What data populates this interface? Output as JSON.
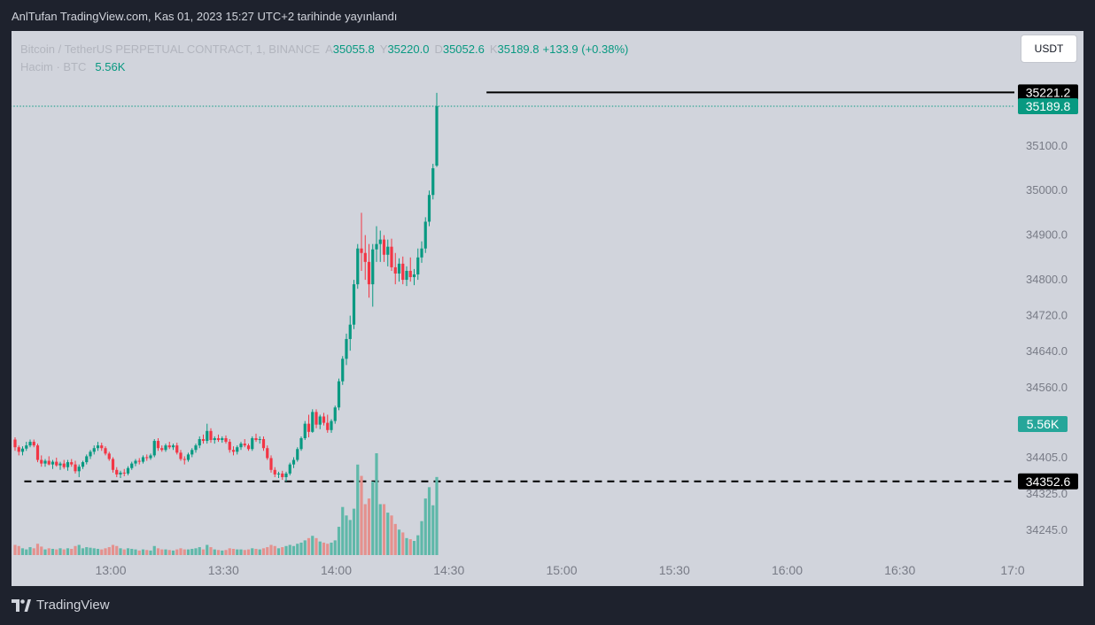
{
  "caption": "AnlTufan TradingView.com, Kas 01, 2023 15:27 UTC+2 tarihinde yayınlandı",
  "legend": {
    "symbol": "Bitcoin / TetherUS PERPETUAL CONTRACT, 1, BINANCE",
    "open_label": "A",
    "open": "35055.8",
    "high_label": "Y",
    "high": "35220.0",
    "low_label": "D",
    "low": "35052.6",
    "close_label": "K",
    "close": "35189.8",
    "change": "+133.9 (+0.38%)",
    "volume_label": "Hacim · BTC",
    "volume": "5.56K"
  },
  "currency_button": "USDT",
  "branding": "TradingView",
  "colors": {
    "up": "#089981",
    "down": "#f23645",
    "vol_up": "#5fb8a9",
    "vol_down": "#e4918e"
  },
  "chart_data": {
    "type": "candlestick",
    "y_ticks": [
      "35100.0",
      "35000.0",
      "34900.0",
      "34800.0",
      "34720.0",
      "34640.0",
      "34560.0",
      "34405.0",
      "34325.0",
      "34245.0"
    ],
    "x_ticks": [
      "13:00",
      "13:30",
      "14:00",
      "14:30",
      "15:00",
      "15:30",
      "16:00",
      "16:30",
      "17:0"
    ],
    "y_scale": "logarithmic",
    "price_labels": {
      "high_line": "35221.2",
      "last_price": "35189.8",
      "volume_tag": "5.56K",
      "low_line": "34352.6"
    },
    "lines": [
      {
        "price": 35221.2,
        "style": "solid",
        "from_time": "14:40"
      },
      {
        "price": 35189.8,
        "style": "dotted",
        "from_time": "12:30"
      },
      {
        "price": 34352.6,
        "style": "dashed",
        "from_time": "12:37"
      }
    ],
    "candles": [
      [
        34445,
        34450,
        34420,
        34428,
        0.18
      ],
      [
        34428,
        34432,
        34410,
        34418,
        0.16
      ],
      [
        34418,
        34430,
        34410,
        34425,
        0.12
      ],
      [
        34425,
        34440,
        34420,
        34432,
        0.1
      ],
      [
        34432,
        34445,
        34428,
        34440,
        0.14
      ],
      [
        34440,
        34445,
        34428,
        34432,
        0.12
      ],
      [
        34432,
        34436,
        34395,
        34400,
        0.2
      ],
      [
        34400,
        34410,
        34385,
        34392,
        0.15
      ],
      [
        34392,
        34402,
        34385,
        34398,
        0.1
      ],
      [
        34398,
        34408,
        34388,
        34390,
        0.12
      ],
      [
        34390,
        34400,
        34380,
        34396,
        0.11
      ],
      [
        34396,
        34405,
        34385,
        34388,
        0.1
      ],
      [
        34388,
        34396,
        34378,
        34392,
        0.12
      ],
      [
        34392,
        34400,
        34380,
        34384,
        0.1
      ],
      [
        34384,
        34400,
        34376,
        34395,
        0.12
      ],
      [
        34395,
        34402,
        34385,
        34390,
        0.11
      ],
      [
        34390,
        34398,
        34370,
        34375,
        0.16
      ],
      [
        34375,
        34390,
        34362,
        34385,
        0.18
      ],
      [
        34385,
        34398,
        34380,
        34395,
        0.12
      ],
      [
        34395,
        34412,
        34390,
        34408,
        0.14
      ],
      [
        34408,
        34422,
        34402,
        34418,
        0.13
      ],
      [
        34418,
        34432,
        34412,
        34426,
        0.12
      ],
      [
        34426,
        34440,
        34420,
        34432,
        0.11
      ],
      [
        34432,
        34438,
        34420,
        34426,
        0.1
      ],
      [
        34426,
        34430,
        34410,
        34414,
        0.12
      ],
      [
        34414,
        34418,
        34398,
        34402,
        0.14
      ],
      [
        34402,
        34406,
        34372,
        34378,
        0.18
      ],
      [
        34378,
        34384,
        34362,
        34368,
        0.16
      ],
      [
        34368,
        34376,
        34360,
        34372,
        0.12
      ],
      [
        34372,
        34380,
        34364,
        34370,
        0.1
      ],
      [
        34370,
        34386,
        34366,
        34382,
        0.12
      ],
      [
        34382,
        34396,
        34378,
        34392,
        0.11
      ],
      [
        34392,
        34402,
        34386,
        34398,
        0.1
      ],
      [
        34398,
        34404,
        34390,
        34396,
        0.08
      ],
      [
        34396,
        34410,
        34392,
        34406,
        0.1
      ],
      [
        34406,
        34412,
        34398,
        34404,
        0.09
      ],
      [
        34404,
        34414,
        34400,
        34410,
        0.08
      ],
      [
        34410,
        34446,
        34406,
        34442,
        0.16
      ],
      [
        34442,
        34448,
        34420,
        34426,
        0.12
      ],
      [
        34426,
        34432,
        34418,
        34422,
        0.1
      ],
      [
        34422,
        34436,
        34418,
        34432,
        0.1
      ],
      [
        34432,
        34440,
        34424,
        34428,
        0.09
      ],
      [
        34428,
        34436,
        34422,
        34432,
        0.08
      ],
      [
        34432,
        34438,
        34412,
        34416,
        0.1
      ],
      [
        34416,
        34422,
        34398,
        34402,
        0.12
      ],
      [
        34402,
        34408,
        34390,
        34400,
        0.1
      ],
      [
        34400,
        34416,
        34396,
        34412,
        0.1
      ],
      [
        34412,
        34426,
        34406,
        34422,
        0.11
      ],
      [
        34422,
        34436,
        34416,
        34432,
        0.12
      ],
      [
        34432,
        34452,
        34426,
        34446,
        0.14
      ],
      [
        34446,
        34456,
        34436,
        34442,
        0.1
      ],
      [
        34442,
        34480,
        34436,
        34464,
        0.18
      ],
      [
        34464,
        34470,
        34438,
        34444,
        0.14
      ],
      [
        34444,
        34452,
        34436,
        34448,
        0.1
      ],
      [
        34448,
        34456,
        34440,
        34444,
        0.09
      ],
      [
        34444,
        34452,
        34438,
        34448,
        0.08
      ],
      [
        34448,
        34454,
        34436,
        34440,
        0.09
      ],
      [
        34440,
        34446,
        34416,
        34422,
        0.12
      ],
      [
        34422,
        34430,
        34410,
        34418,
        0.11
      ],
      [
        34418,
        34432,
        34412,
        34428,
        0.1
      ],
      [
        34428,
        34440,
        34422,
        34436,
        0.1
      ],
      [
        34436,
        34446,
        34428,
        34432,
        0.09
      ],
      [
        34432,
        34436,
        34420,
        34424,
        0.1
      ],
      [
        34424,
        34452,
        34420,
        34448,
        0.12
      ],
      [
        34448,
        34458,
        34440,
        34444,
        0.11
      ],
      [
        34444,
        34452,
        34436,
        34446,
        0.1
      ],
      [
        34446,
        34452,
        34420,
        34426,
        0.12
      ],
      [
        34426,
        34432,
        34400,
        34404,
        0.14
      ],
      [
        34404,
        34410,
        34372,
        34378,
        0.18
      ],
      [
        34378,
        34384,
        34362,
        34368,
        0.16
      ],
      [
        34368,
        34374,
        34360,
        34370,
        0.12
      ],
      [
        34370,
        34376,
        34356,
        34362,
        0.14
      ],
      [
        34362,
        34374,
        34352,
        34370,
        0.16
      ],
      [
        34370,
        34394,
        34366,
        34390,
        0.18
      ],
      [
        34390,
        34406,
        34382,
        34400,
        0.16
      ],
      [
        34400,
        34428,
        34396,
        34424,
        0.2
      ],
      [
        34424,
        34452,
        34420,
        34448,
        0.22
      ],
      [
        34448,
        34486,
        34444,
        34480,
        0.26
      ],
      [
        34480,
        34500,
        34450,
        34462,
        0.3
      ],
      [
        34462,
        34512,
        34460,
        34506,
        0.34
      ],
      [
        34506,
        34512,
        34470,
        34478,
        0.3
      ],
      [
        34478,
        34500,
        34468,
        34496,
        0.24
      ],
      [
        34496,
        34504,
        34476,
        34482,
        0.22
      ],
      [
        34482,
        34500,
        34460,
        34466,
        0.2
      ],
      [
        34466,
        34490,
        34460,
        34486,
        0.22
      ],
      [
        34486,
        34520,
        34480,
        34516,
        0.26
      ],
      [
        34516,
        34580,
        34510,
        34574,
        0.5
      ],
      [
        34574,
        34630,
        34566,
        34624,
        0.85
      ],
      [
        34624,
        34680,
        34610,
        34668,
        0.7
      ],
      [
        34668,
        34720,
        34642,
        34700,
        0.62
      ],
      [
        34700,
        34800,
        34690,
        34790,
        0.82
      ],
      [
        34790,
        34880,
        34780,
        34870,
        1.6
      ],
      [
        34870,
        34950,
        34820,
        34860,
        1.4
      ],
      [
        34860,
        34900,
        34800,
        34840,
        0.9
      ],
      [
        34840,
        34880,
        34760,
        34790,
        1.0
      ],
      [
        34790,
        34880,
        34740,
        34868,
        1.3
      ],
      [
        34868,
        34920,
        34840,
        34880,
        1.8
      ],
      [
        34880,
        34910,
        34840,
        34890,
        0.9
      ],
      [
        34890,
        34900,
        34840,
        34856,
        0.9
      ],
      [
        34856,
        34890,
        34830,
        34874,
        0.75
      ],
      [
        34874,
        34892,
        34820,
        34828,
        0.7
      ],
      [
        34828,
        34860,
        34790,
        34814,
        0.55
      ],
      [
        34814,
        34848,
        34796,
        34836,
        0.45
      ],
      [
        34836,
        34852,
        34790,
        34800,
        0.4
      ],
      [
        34800,
        34830,
        34786,
        34820,
        0.3
      ],
      [
        34820,
        34850,
        34796,
        34806,
        0.28
      ],
      [
        34806,
        34824,
        34788,
        34812,
        0.25
      ],
      [
        34812,
        34870,
        34800,
        34850,
        0.35
      ],
      [
        34850,
        34886,
        34838,
        34870,
        0.6
      ],
      [
        34870,
        34940,
        34860,
        34930,
        1.0
      ],
      [
        34930,
        35000,
        34920,
        34990,
        1.2
      ],
      [
        34990,
        35060,
        34980,
        35050,
        0.88
      ],
      [
        35056,
        35220,
        35053,
        35190,
        1.38
      ]
    ]
  }
}
